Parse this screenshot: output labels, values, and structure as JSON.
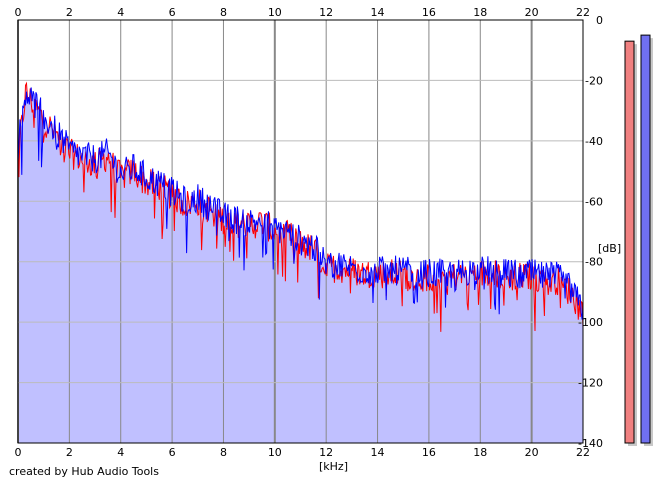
{
  "chart_data": {
    "type": "area",
    "xunit": "[kHz]",
    "yunit": "[dB]",
    "xlim": [
      0,
      22
    ],
    "ylim": [
      -140,
      0
    ],
    "x_ticks": [
      0,
      2,
      4,
      6,
      8,
      10,
      12,
      14,
      16,
      18,
      20,
      22
    ],
    "y_ticks": [
      0,
      -20,
      -40,
      -60,
      -80,
      -100,
      -120,
      -140
    ],
    "grid": true,
    "series": [
      {
        "color": "#ff0000",
        "x": [
          0,
          0.3,
          0.6,
          1,
          1.5,
          2,
          2.5,
          3,
          3.5,
          4,
          4.5,
          5,
          5.5,
          6,
          6.5,
          7,
          7.5,
          8,
          8.5,
          9,
          9.5,
          10,
          10.5,
          11,
          11.5,
          12,
          12.5,
          13,
          13.5,
          14,
          14.5,
          15,
          15.5,
          16,
          16.5,
          17,
          17.5,
          18,
          18.5,
          19,
          19.5,
          20,
          20.5,
          21,
          21.5,
          22
        ],
        "values": [
          -45,
          -24,
          -28,
          -33,
          -38,
          -44,
          -46,
          -48,
          -45,
          -52,
          -50,
          -54,
          -55,
          -58,
          -61,
          -60,
          -63,
          -66,
          -67,
          -68,
          -67,
          -70,
          -71,
          -74,
          -76,
          -82,
          -82,
          -83,
          -84,
          -84,
          -84,
          -84,
          -85,
          -85,
          -85,
          -85,
          -84,
          -84,
          -84,
          -85,
          -85,
          -85,
          -86,
          -86,
          -90,
          -97
        ]
      },
      {
        "color": "#0000ff",
        "x": [
          0,
          0.3,
          0.6,
          1,
          1.5,
          2,
          2.5,
          3,
          3.5,
          4,
          4.5,
          5,
          5.5,
          6,
          6.5,
          7,
          7.5,
          8,
          8.5,
          9,
          9.5,
          10,
          10.5,
          11,
          11.5,
          12,
          12.5,
          13,
          13.5,
          14,
          14.5,
          15,
          15.5,
          16,
          16.5,
          17,
          17.5,
          18,
          18.5,
          19,
          19.5,
          20,
          20.5,
          21,
          21.5,
          22
        ],
        "values": [
          -42,
          -23,
          -27,
          -32,
          -37,
          -43,
          -45,
          -46,
          -44,
          -51,
          -49,
          -52,
          -54,
          -57,
          -60,
          -59,
          -62,
          -65,
          -66,
          -67,
          -66,
          -69,
          -70,
          -73,
          -75,
          -81,
          -81,
          -82,
          -83,
          -83,
          -83,
          -83,
          -84,
          -84,
          -84,
          -84,
          -83,
          -83,
          -83,
          -84,
          -84,
          -84,
          -85,
          -85,
          -89,
          -96
        ]
      }
    ],
    "meters": [
      {
        "color": "#f08080",
        "value_db": -7
      },
      {
        "color": "#7070f0",
        "value_db": -5
      }
    ]
  },
  "credit": "created by Hub Audio Tools"
}
